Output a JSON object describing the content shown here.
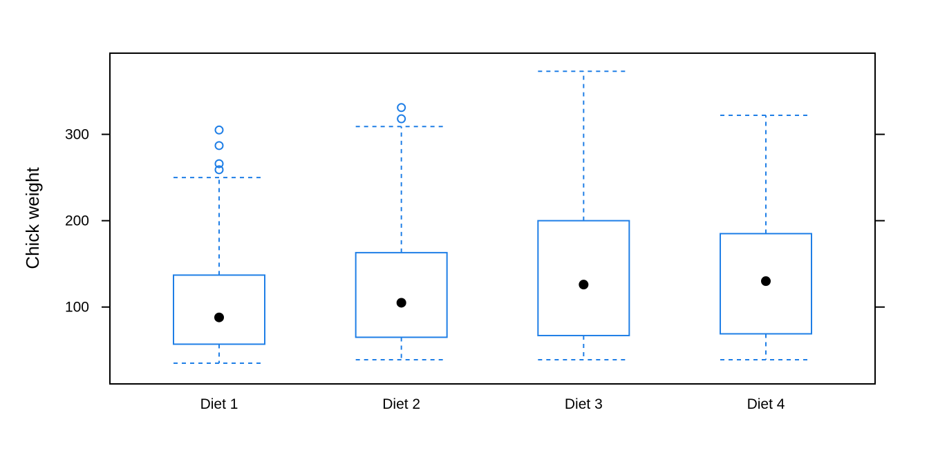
{
  "chart_data": {
    "type": "boxplot",
    "title": "",
    "xlabel": "",
    "ylabel": "Chick weight",
    "categories": [
      "Diet 1",
      "Diet 2",
      "Diet 3",
      "Diet 4"
    ],
    "ylim": [
      11,
      394
    ],
    "yticks": [
      100,
      200,
      300
    ],
    "grid": false,
    "colors": {
      "box": "#1e7ee6",
      "median_point": "#000000",
      "frame": "#000000"
    },
    "boxes": [
      {
        "category": "Diet 1",
        "whisker_low": 35,
        "q1": 57,
        "median": 88,
        "q3": 137,
        "whisker_high": 250,
        "outliers": [
          259,
          266,
          287,
          305
        ]
      },
      {
        "category": "Diet 2",
        "whisker_low": 39,
        "q1": 65,
        "median": 105,
        "q3": 163,
        "whisker_high": 309,
        "outliers": [
          318,
          331
        ]
      },
      {
        "category": "Diet 3",
        "whisker_low": 39,
        "q1": 67,
        "median": 126,
        "q3": 200,
        "whisker_high": 373,
        "outliers": []
      },
      {
        "category": "Diet 4",
        "whisker_low": 39,
        "q1": 69,
        "median": 130,
        "q3": 185,
        "whisker_high": 322,
        "outliers": []
      }
    ]
  }
}
